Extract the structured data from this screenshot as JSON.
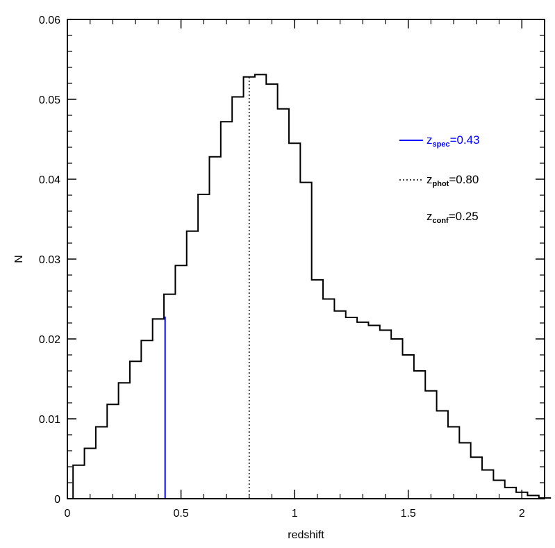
{
  "chart_data": {
    "type": "histogram",
    "xlabel": "redshift",
    "ylabel": "N",
    "xlim": [
      0,
      2.1
    ],
    "ylim": [
      0,
      0.06
    ],
    "x_ticks": [
      "0",
      "0.5",
      "1",
      "1.5",
      "2"
    ],
    "x_tick_values": [
      0,
      0.5,
      1,
      1.5,
      2
    ],
    "y_ticks": [
      "0",
      "0.01",
      "0.02",
      "0.03",
      "0.04",
      "0.05",
      "0.06"
    ],
    "y_tick_values": [
      0,
      0.01,
      0.02,
      0.03,
      0.04,
      0.05,
      0.06
    ],
    "grid": false,
    "bin_width": 0.05,
    "bin_start": 0.025,
    "values": [
      0.0042,
      0.0063,
      0.009,
      0.0118,
      0.0145,
      0.0172,
      0.0198,
      0.0225,
      0.0256,
      0.0292,
      0.0335,
      0.0381,
      0.0428,
      0.0472,
      0.0503,
      0.0528,
      0.0531,
      0.0519,
      0.0488,
      0.0445,
      0.0396,
      0.0274,
      0.025,
      0.0235,
      0.0227,
      0.0221,
      0.0217,
      0.0211,
      0.02,
      0.018,
      0.016,
      0.0135,
      0.011,
      0.009,
      0.007,
      0.0052,
      0.0036,
      0.0023,
      0.0014,
      0.0008,
      0.0004,
      0.0001
    ],
    "vlines": [
      {
        "x": 0.43,
        "y_top": 0.0228,
        "style": "solid",
        "color": "#0000ff"
      },
      {
        "x": 0.8,
        "y_top": 0.0528,
        "style": "dotted",
        "color": "#000000"
      }
    ],
    "legend_position": "right",
    "legend": [
      {
        "symbol": "z",
        "sub": "spec",
        "value": "=0.43",
        "line": "solid",
        "color": "#0000ff"
      },
      {
        "symbol": "z",
        "sub": "phot",
        "value": "=0.80",
        "line": "dotted",
        "color": "#000000"
      },
      {
        "symbol": "z",
        "sub": "conf",
        "value": "=0.25",
        "line": "none",
        "color": "#000000"
      }
    ]
  }
}
